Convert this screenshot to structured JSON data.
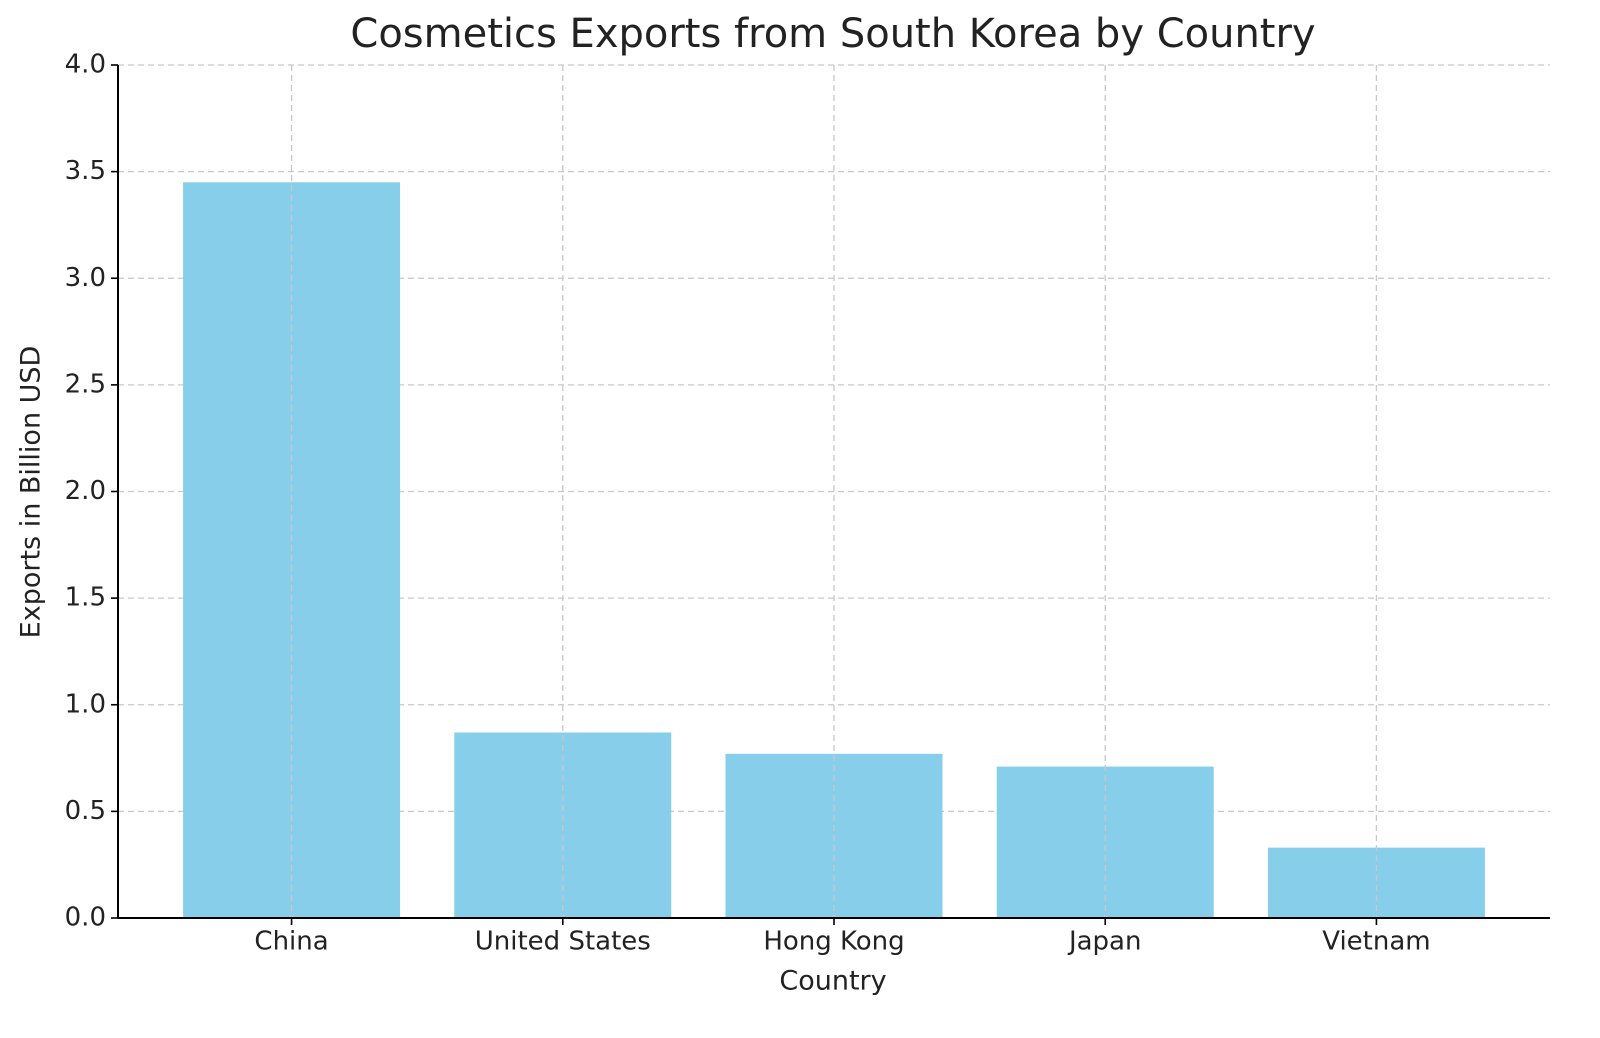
{
  "chart_data": {
    "type": "bar",
    "title": "Cosmetics Exports from South Korea by Country",
    "x_label": "Country",
    "y_label": "Exports in Billion USD",
    "categories": [
      "China",
      "United States",
      "Hong Kong",
      "Japan",
      "Vietnam"
    ],
    "values": [
      3.45,
      0.87,
      0.77,
      0.71,
      0.33
    ],
    "color": "#87ceeb",
    "ylim": [
      0,
      4
    ],
    "yticks": [
      {
        "value": 0,
        "label": "0.0"
      },
      0.5,
      {
        "value": 1,
        "label": "1.0"
      },
      1.5,
      {
        "value": 2,
        "label": "2.0"
      },
      2.5,
      {
        "value": 3,
        "label": "3.0"
      },
      3.5,
      {
        "value": 4,
        "label": "4.0"
      }
    ],
    "grid": true
  }
}
